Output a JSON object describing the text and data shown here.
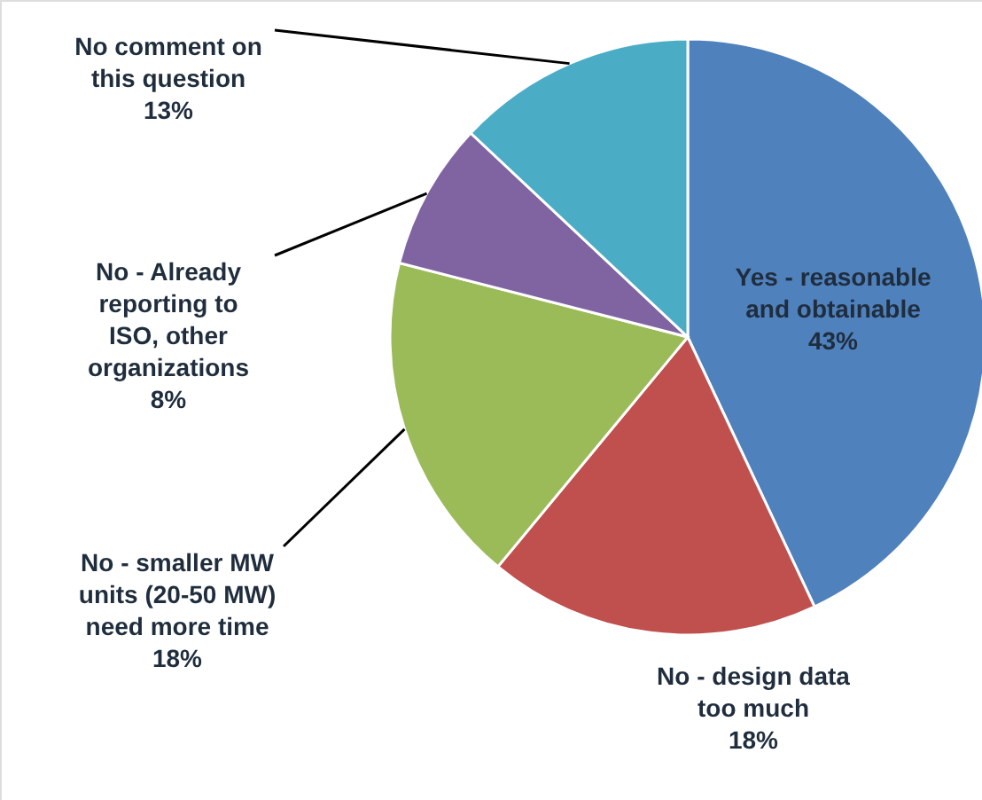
{
  "chart_data": {
    "type": "pie",
    "categories": [
      "Yes - reasonable and obtainable",
      "No - design data too much",
      "No - smaller MW units (20-50 MW) need more time",
      "No - Already reporting to ISO, other organizations",
      "No comment on this question"
    ],
    "values": [
      43,
      18,
      18,
      8,
      13
    ],
    "value_labels": [
      "43%",
      "18%",
      "18%",
      "8%",
      "13%"
    ],
    "colors": [
      "#4f81bd",
      "#c0504d",
      "#9bbb59",
      "#8064a2",
      "#4bacc6"
    ]
  }
}
